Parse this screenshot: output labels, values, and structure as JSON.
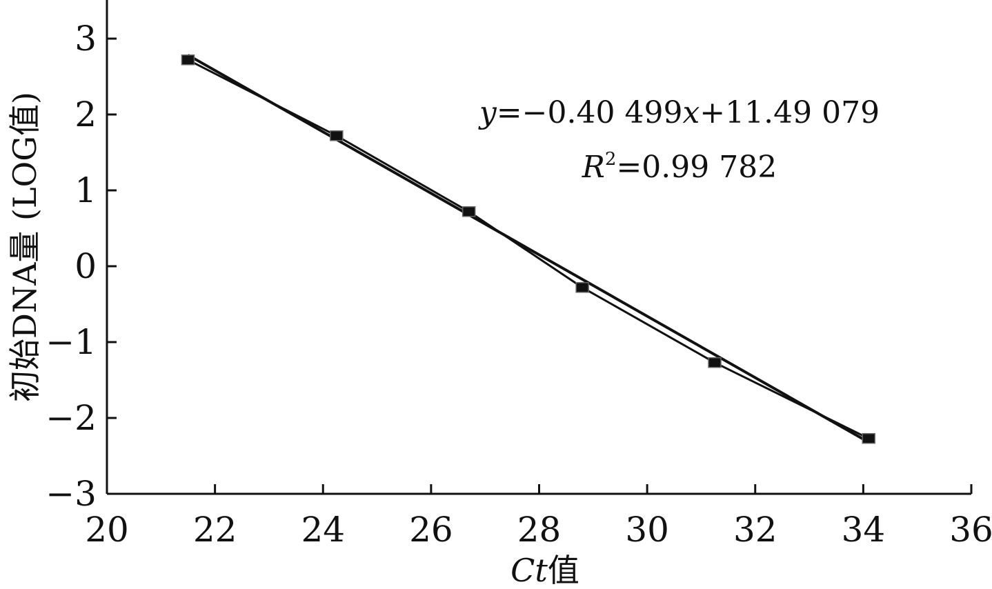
{
  "chart_data": {
    "type": "scatter",
    "xlabel_italic": "Ct",
    "xlabel_suffix": "值",
    "ylabel": "初始DNA量 (LOG值)",
    "xlim": [
      20,
      36
    ],
    "ylim": [
      -3,
      3
    ],
    "x_ticks": [
      20,
      22,
      24,
      26,
      28,
      30,
      32,
      34,
      36
    ],
    "y_ticks": [
      -3,
      -2,
      -1,
      0,
      1,
      2,
      3
    ],
    "series": [
      {
        "x": [
          21.5,
          24.25,
          26.7,
          28.8,
          31.25,
          34.1
        ],
        "y": [
          2.72,
          1.72,
          0.72,
          -0.28,
          -1.27,
          -2.27
        ]
      }
    ],
    "fit": {
      "slope": -0.40499,
      "intercept": 11.49079,
      "r2": 0.99782
    },
    "equation_text": {
      "y_var": "y",
      "y_rest": "=−0.40 499",
      "x_var": "x",
      "x_rest": "+11.49 079",
      "r_var": "R",
      "r_sup": "2",
      "r_rest": "=0.99 782"
    },
    "colors": {
      "axis": "#111111",
      "series": "#111111",
      "marker_edge": "#666666"
    }
  }
}
